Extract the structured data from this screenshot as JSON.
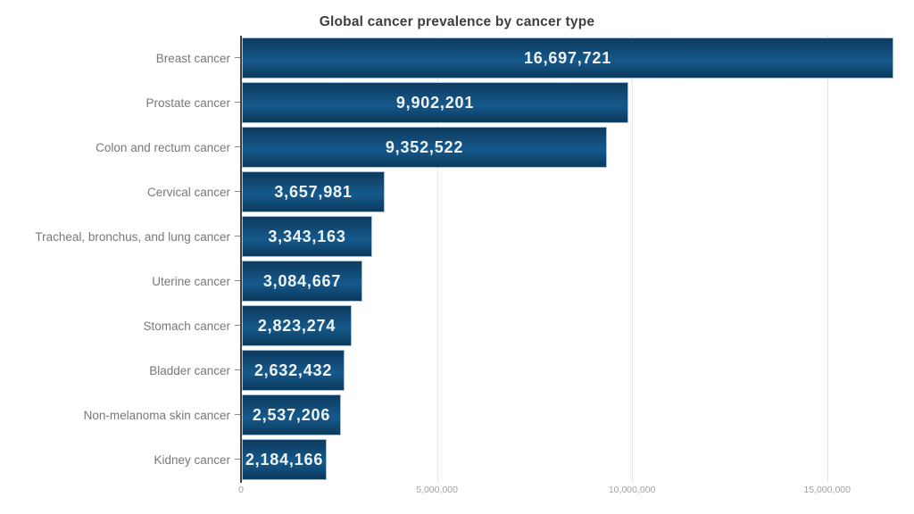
{
  "chart_data": {
    "type": "bar",
    "orientation": "horizontal",
    "title": "Global cancer prevalence by cancer type",
    "categories": [
      "Breast cancer",
      "Prostate cancer",
      "Colon and rectum cancer",
      "Cervical cancer",
      "Tracheal, bronchus, and lung cancer",
      "Uterine cancer",
      "Stomach cancer",
      "Bladder cancer",
      "Non-melanoma skin cancer",
      "Kidney cancer"
    ],
    "values": [
      16697721,
      9902201,
      9352522,
      3657981,
      3343163,
      3084667,
      2823274,
      2632432,
      2537206,
      2184166
    ],
    "value_labels": [
      "16,697,721",
      "9,902,201",
      "9,352,522",
      "3,657,981",
      "3,343,163",
      "3,084,667",
      "2,823,274",
      "2,632,432",
      "2,537,206",
      "2,184,166"
    ],
    "xlabel": "",
    "ylabel": "",
    "xlim": [
      0,
      16860000
    ],
    "xticks": [
      {
        "value": 0,
        "label": "0"
      },
      {
        "value": 5000000,
        "label": "5,000,000"
      },
      {
        "value": 10000000,
        "label": "10,000,000"
      },
      {
        "value": 15000000,
        "label": "15,000,000"
      }
    ],
    "grid": "vertical dotted",
    "legend": "none"
  },
  "colors": {
    "background": "#ffffff",
    "title": "#3c4043",
    "bar_gradient_top": "#0e3e63",
    "bar_gradient_mid": "#15598c",
    "bar_gradient_bottom": "#0b3a5c",
    "bar_border": "#a3c2da",
    "value_label": "#f2f3f4",
    "category_label": "#77787b",
    "axis_tick_label": "#a2a2a2",
    "gridline": "#d4d4d4",
    "axis_line": "#3f4043"
  }
}
